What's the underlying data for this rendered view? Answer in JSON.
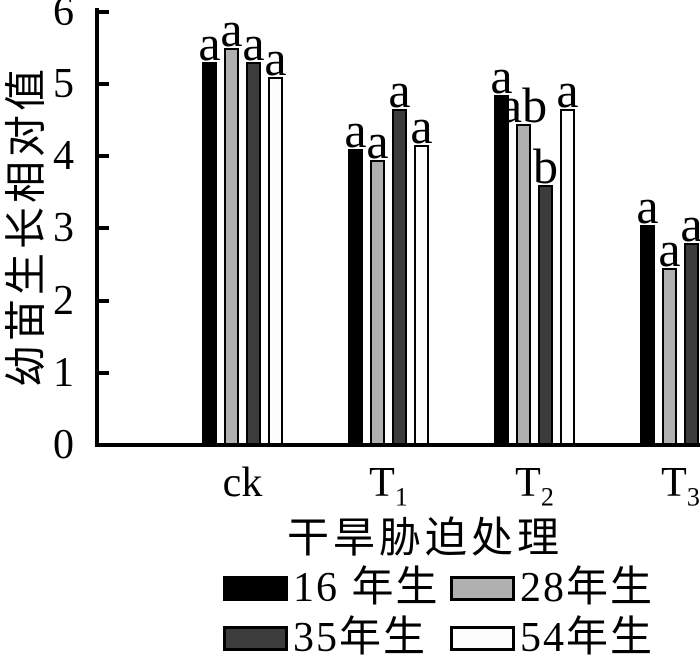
{
  "figure": {
    "background": "#ffffff",
    "axis_color": "#000000"
  },
  "chart_data": {
    "type": "bar",
    "title": "",
    "xlabel": "干旱胁迫处理",
    "ylabel": "幼苗生长相对值",
    "ylim": [
      0,
      6
    ],
    "yticks": [
      0,
      1,
      2,
      3,
      4,
      5,
      6
    ],
    "grid": false,
    "legend_position": "bottom",
    "bar_border_color": "#000000",
    "categories": [
      {
        "base": "ck",
        "sub": ""
      },
      {
        "base": "T",
        "sub": "1"
      },
      {
        "base": "T",
        "sub": "2"
      },
      {
        "base": "T",
        "sub": "3"
      }
    ],
    "series": [
      {
        "name": "16 年生",
        "color": "#000000",
        "values": [
          5.3,
          4.1,
          4.85,
          3.05
        ],
        "sig_labels": [
          "a",
          "a",
          "a",
          "a"
        ]
      },
      {
        "name": "28年生",
        "color": "#b0b0b0",
        "values": [
          5.5,
          3.95,
          4.45,
          2.45
        ],
        "sig_labels": [
          "a",
          "a",
          "ab",
          "a"
        ]
      },
      {
        "name": "35年生",
        "color": "#3c3c3c",
        "values": [
          5.3,
          4.65,
          3.6,
          2.8
        ],
        "sig_labels": [
          "a",
          "a",
          "b",
          "a"
        ]
      },
      {
        "name": "54年生",
        "color": "#fdfdfd",
        "values": [
          5.1,
          4.15,
          4.65,
          null
        ],
        "sig_labels": [
          "a",
          "a",
          "a",
          null
        ]
      }
    ]
  }
}
